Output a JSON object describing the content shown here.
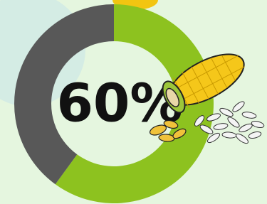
{
  "chart_data": {
    "type": "donut",
    "values": [
      60,
      40
    ],
    "value_labels": [
      "60%",
      null
    ],
    "colors": [
      "#8dc21f",
      "#585858"
    ]
  }
}
